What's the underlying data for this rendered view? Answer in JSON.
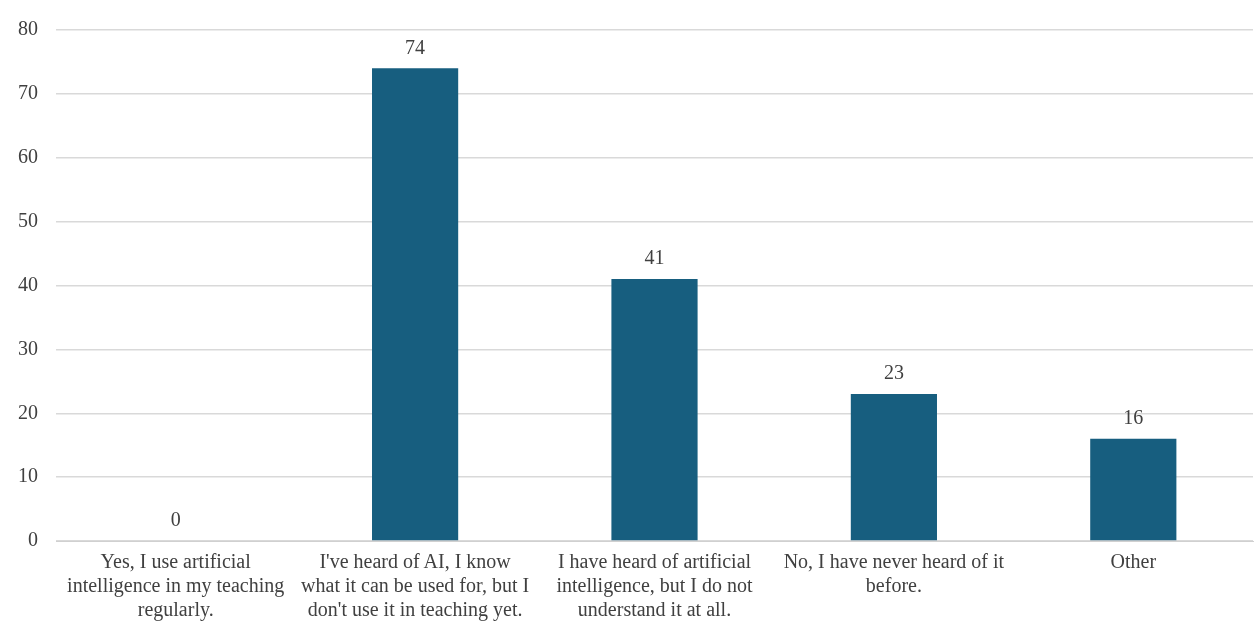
{
  "chart_data": {
    "type": "bar",
    "categories": [
      "Yes, I use artificial intelligence in my teaching regularly.",
      "I've heard of AI, I know what it can be used for, but I don't use it in teaching yet.",
      "I have heard of artificial intelligence, but I do not understand it at all.",
      "No, I have never heard of it before.",
      "Other"
    ],
    "values": [
      0,
      74,
      41,
      23,
      16
    ],
    "color": "#175e7f",
    "ylim": [
      0,
      80
    ],
    "yticks": [
      0,
      10,
      20,
      30,
      40,
      50,
      60,
      70,
      80
    ],
    "grid": "y",
    "data_labels": true,
    "legend": false
  }
}
